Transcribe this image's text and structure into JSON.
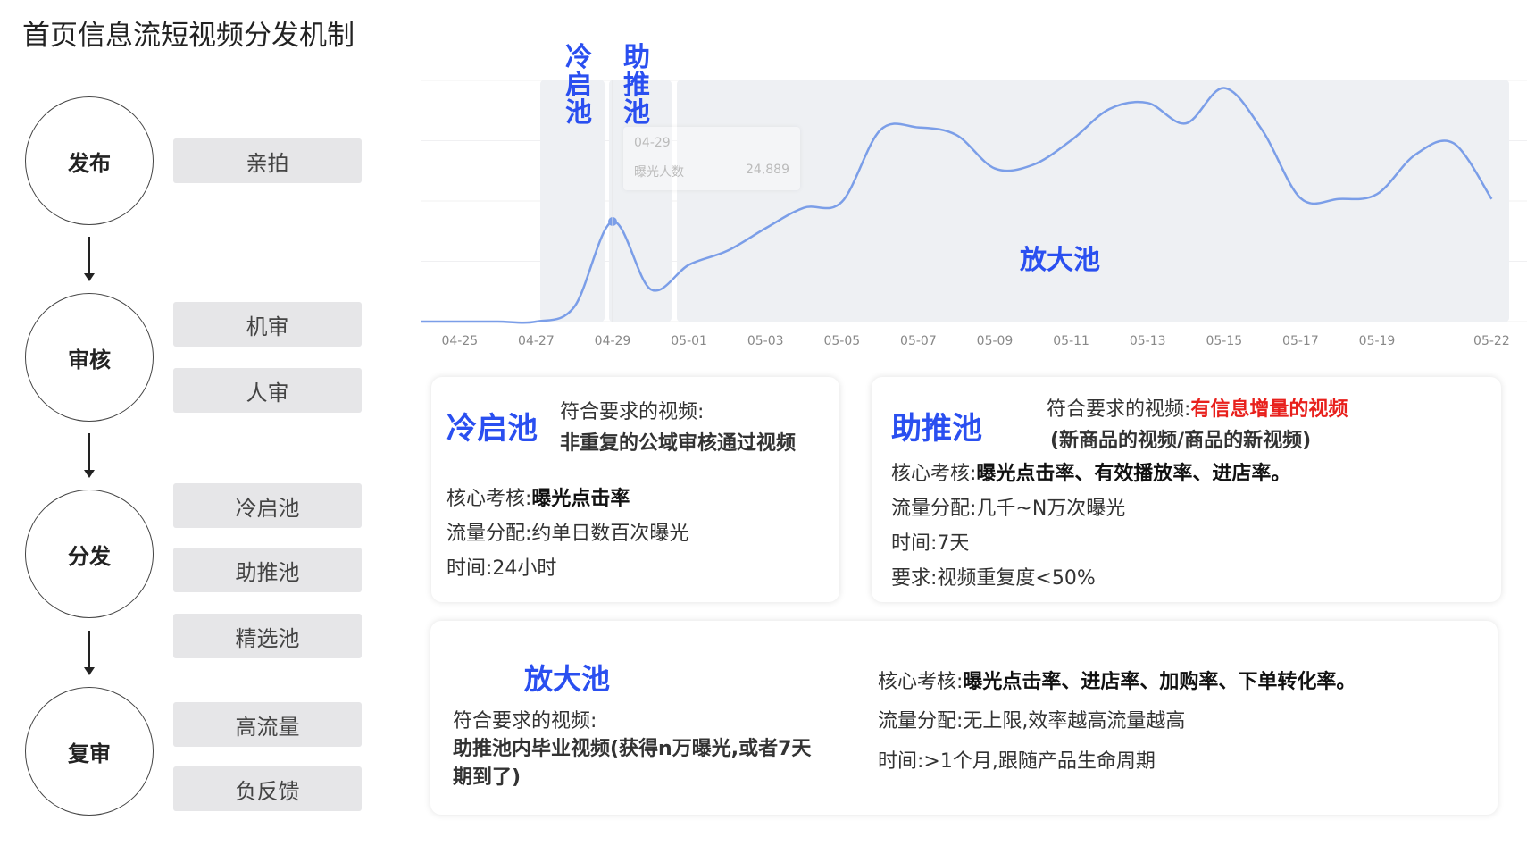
{
  "title": "首页信息流短视频分发机制",
  "flow": {
    "stages": [
      {
        "label": "发布"
      },
      {
        "label": "审核"
      },
      {
        "label": "分发"
      },
      {
        "label": "复审"
      }
    ],
    "items": {
      "publish": [
        "亲拍"
      ],
      "review": [
        "机审",
        "人审"
      ],
      "distribute": [
        "冷启池",
        "助推池",
        "精选池"
      ],
      "recheck": [
        "高流量",
        "负反馈"
      ]
    }
  },
  "chart_data": {
    "type": "line",
    "x": [
      "04-24",
      "04-25",
      "04-26",
      "04-27",
      "04-28",
      "04-29",
      "04-30",
      "05-01",
      "05-02",
      "05-03",
      "05-04",
      "05-05",
      "05-06",
      "05-07",
      "05-08",
      "05-09",
      "05-10",
      "05-11",
      "05-12",
      "05-13",
      "05-14",
      "05-15",
      "05-16",
      "05-17",
      "05-18",
      "05-19",
      "05-20",
      "05-21",
      "05-22"
    ],
    "values": [
      0,
      0,
      0,
      0,
      3700,
      24889,
      8000,
      14150,
      17600,
      23200,
      28300,
      29800,
      47600,
      48300,
      46400,
      38100,
      39000,
      45100,
      52900,
      54400,
      49300,
      58100,
      47600,
      30700,
      30500,
      31700,
      41500,
      44400,
      30500
    ],
    "tick_labels": [
      "04-25",
      "04-27",
      "04-29",
      "05-01",
      "05-03",
      "05-05",
      "05-07",
      "05-09",
      "05-11",
      "05-13",
      "05-15",
      "05-17",
      "05-19",
      "05-22"
    ],
    "ylim": [
      0,
      60000
    ],
    "grid": true,
    "color": "#7b9ee8",
    "regions": [
      {
        "label": "冷启池",
        "from": "04-27",
        "to": "04-29"
      },
      {
        "label": "助推池",
        "from": "04-29",
        "to": "05-01"
      },
      {
        "label": "放大池",
        "from": "05-01",
        "to": "05-22"
      }
    ],
    "tooltip": {
      "date": "04-29",
      "metric": "曝光人数",
      "value": "24,889"
    }
  },
  "cards": {
    "cold": {
      "title": "冷启池",
      "req_label": "符合要求的视频:",
      "req_value": "非重复的公域审核通过视频",
      "kpi_label": "核心考核:",
      "kpi_value": "曝光点击率",
      "traffic": "流量分配:约单日数百次曝光",
      "time": "时间:24小时"
    },
    "boost": {
      "title": "助推池",
      "req_label": "符合要求的视频:",
      "req_value": "有信息增量的视频",
      "req_value2": "(新商品的视频/商品的新视频)",
      "kpi_label": "核心考核:",
      "kpi_value": "曝光点击率、有效播放率、进店率。",
      "traffic": "流量分配:几千~N万次曝光",
      "time": "时间:7天",
      "require": "要求:视频重复度<50%"
    },
    "amplify": {
      "title": "放大池",
      "req_label": "符合要求的视频:",
      "req_value": "助推池内毕业视频(获得n万曝光,或者7天期到了)",
      "kpi_label": "核心考核:",
      "kpi_value": "曝光点击率、进店率、加购率、下单转化率。",
      "traffic": "流量分配:无上限,效率越高流量越高",
      "time": "时间:>1个月,跟随产品生命周期"
    }
  },
  "colors": {
    "blue": "#2a4ff0",
    "red": "#e8201c"
  }
}
